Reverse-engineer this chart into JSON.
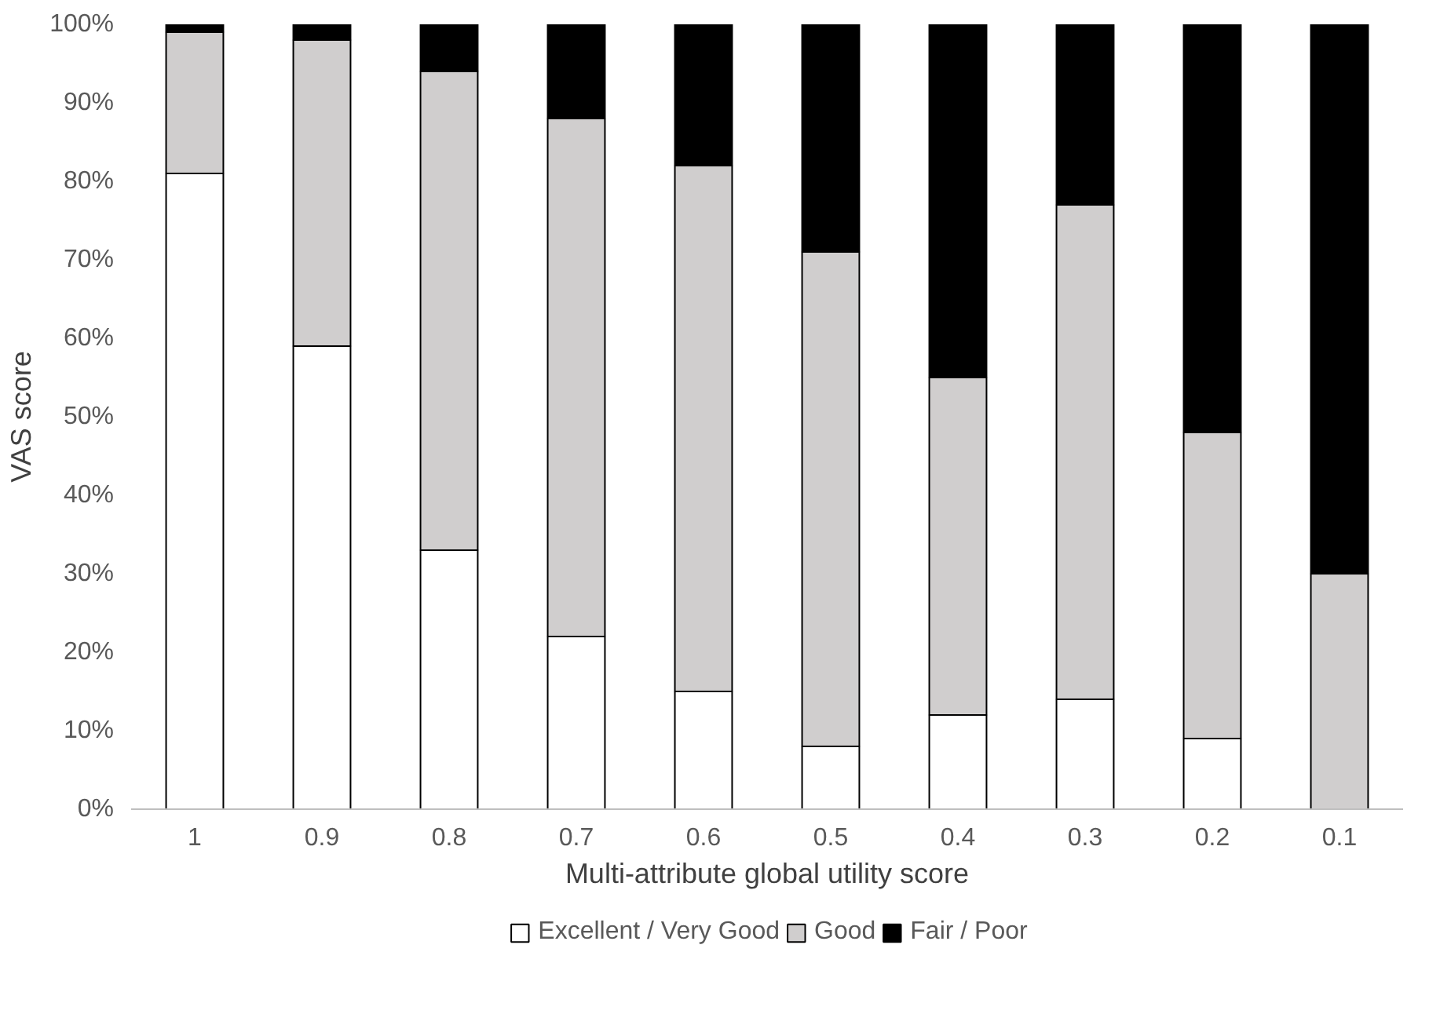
{
  "chart_data": {
    "type": "bar",
    "stacked": true,
    "xlabel": "Multi-attribute global utility score",
    "ylabel": "VAS score",
    "categories": [
      "1",
      "0.9",
      "0.8",
      "0.7",
      "0.6",
      "0.5",
      "0.4",
      "0.3",
      "0.2",
      "0.1"
    ],
    "series": [
      {
        "name": "Excellent / Very Good",
        "color": "#ffffff",
        "values": [
          81,
          59,
          33,
          22,
          15,
          8,
          12,
          14,
          9,
          0
        ]
      },
      {
        "name": "Good",
        "color": "#d0cece",
        "values": [
          18,
          39,
          61,
          66,
          67,
          63,
          43,
          63,
          39,
          30
        ]
      },
      {
        "name": "Fair / Poor",
        "color": "#000000",
        "values": [
          1,
          2,
          6,
          12,
          18,
          29,
          45,
          23,
          52,
          70
        ]
      }
    ],
    "ylim": [
      0,
      100
    ],
    "yticks": [
      {
        "value": 0,
        "label": "0%"
      },
      {
        "value": 10,
        "label": "10%"
      },
      {
        "value": 20,
        "label": "20%"
      },
      {
        "value": 30,
        "label": "30%"
      },
      {
        "value": 40,
        "label": "40%"
      },
      {
        "value": 50,
        "label": "50%"
      },
      {
        "value": 60,
        "label": "60%"
      },
      {
        "value": 70,
        "label": "70%"
      },
      {
        "value": 80,
        "label": "80%"
      },
      {
        "value": 90,
        "label": "90%"
      },
      {
        "value": 100,
        "label": "100%"
      }
    ],
    "grid": false,
    "legend": "bottom"
  }
}
